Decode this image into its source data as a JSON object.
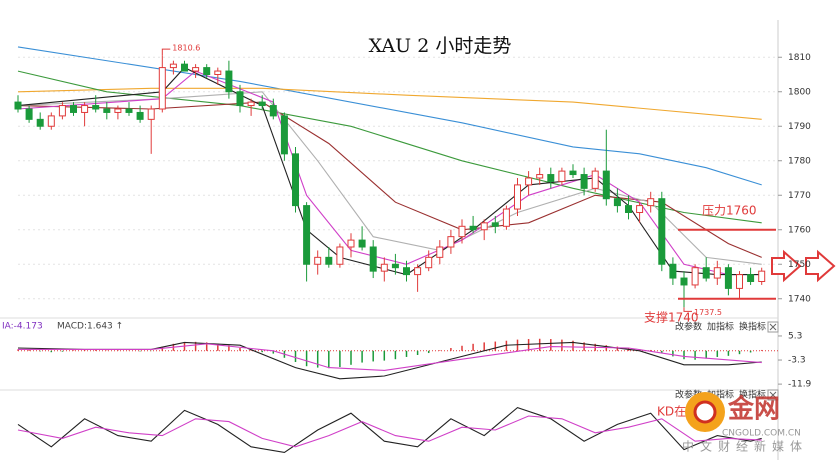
{
  "chart_data": [
    {
      "type": "candlestick",
      "title": "XAU 2 小时走势",
      "ylim": [
        1735,
        1815
      ],
      "yticks": [
        1740,
        1750,
        1760,
        1770,
        1780,
        1790,
        1800,
        1810
      ],
      "grid": true,
      "up_color": "#e03a3a",
      "down_color": "#1a9a3a",
      "candles": {
        "open": [
          1797,
          1795,
          1792,
          1790,
          1793,
          1796,
          1794,
          1796,
          1795,
          1794,
          1795,
          1794,
          1792,
          1795,
          1807,
          1808,
          1806,
          1807,
          1805,
          1806,
          1800,
          1796,
          1797,
          1796,
          1793,
          1782,
          1767,
          1750,
          1752,
          1750,
          1755,
          1757,
          1755,
          1748,
          1750,
          1749,
          1747,
          1749,
          1752,
          1755,
          1758,
          1761,
          1760,
          1762,
          1761,
          1766,
          1773,
          1775,
          1776,
          1774,
          1777,
          1776,
          1772,
          1777,
          1769,
          1767,
          1765,
          1767,
          1769,
          1750,
          1746,
          1744,
          1749,
          1746,
          1749,
          1743,
          1747,
          1745
        ],
        "high": [
          1799,
          1796,
          1794,
          1794,
          1797,
          1797,
          1797,
          1799,
          1797,
          1796,
          1797,
          1796,
          1796,
          1810.6,
          1809,
          1809,
          1808,
          1808,
          1807,
          1809,
          1802,
          1798,
          1799,
          1798,
          1794,
          1784,
          1768,
          1754,
          1755,
          1756,
          1759,
          1761,
          1757,
          1752,
          1753,
          1751,
          1750,
          1754,
          1757,
          1760,
          1763,
          1764,
          1763,
          1764,
          1767,
          1775,
          1777,
          1778,
          1778,
          1778,
          1779,
          1778,
          1778,
          1789,
          1772,
          1770,
          1768,
          1771,
          1771,
          1752,
          1748,
          1750,
          1752,
          1751,
          1750,
          1748,
          1749,
          1749
        ],
        "low": [
          1794,
          1791,
          1789,
          1789,
          1792,
          1793,
          1790,
          1794,
          1792,
          1792,
          1793,
          1791,
          1782,
          1794,
          1805,
          1806,
          1804,
          1804,
          1802,
          1798,
          1794,
          1793,
          1795,
          1792,
          1780,
          1765,
          1745,
          1747,
          1749,
          1749,
          1752,
          1754,
          1746,
          1745,
          1747,
          1745,
          1742,
          1748,
          1750,
          1753,
          1756,
          1759,
          1757,
          1759,
          1760,
          1764,
          1770,
          1773,
          1772,
          1773,
          1775,
          1770,
          1771,
          1767,
          1765,
          1763,
          1762,
          1765,
          1748,
          1744,
          1737.5,
          1743,
          1745,
          1744,
          1741,
          1740,
          1744,
          1744
        ],
        "close": [
          1795,
          1792,
          1790,
          1793,
          1796,
          1794,
          1796,
          1795,
          1794,
          1795,
          1794,
          1792,
          1795,
          1807,
          1808,
          1806,
          1807,
          1805,
          1806,
          1800,
          1796,
          1797,
          1796,
          1793,
          1782,
          1767,
          1750,
          1752,
          1750,
          1755,
          1757,
          1755,
          1748,
          1750,
          1749,
          1747,
          1749,
          1752,
          1755,
          1758,
          1761,
          1760,
          1762,
          1761,
          1766,
          1773,
          1775,
          1776,
          1774,
          1777,
          1776,
          1772,
          1777,
          1769,
          1767,
          1765,
          1767,
          1769,
          1750,
          1746,
          1744,
          1749,
          1746,
          1749,
          1743,
          1747,
          1745,
          1748
        ]
      },
      "lines": [
        {
          "color": "#3a8fd6",
          "x": [
            0,
            20,
            40,
            50,
            56,
            62,
            67
          ],
          "values": [
            1813,
            1803,
            1791,
            1784,
            1782,
            1778,
            1773
          ]
        },
        {
          "color": "#f0a830",
          "x": [
            0,
            12,
            22,
            35,
            50,
            67
          ],
          "values": [
            1800,
            1801,
            1801,
            1799,
            1797,
            1792
          ]
        },
        {
          "color": "#3c9a3c",
          "x": [
            0,
            8,
            20,
            30,
            40,
            50,
            60,
            67
          ],
          "values": [
            1806,
            1800,
            1796,
            1790,
            1780,
            1772,
            1765,
            1762
          ]
        },
        {
          "color": "#9a3030",
          "x": [
            0,
            12,
            22,
            28,
            34,
            40,
            46,
            52,
            58,
            64,
            67
          ],
          "values": [
            1796,
            1795,
            1797,
            1785,
            1768,
            1760,
            1762,
            1770,
            1768,
            1756,
            1752
          ]
        },
        {
          "color": "#b0b0b0",
          "x": [
            0,
            13,
            22,
            27,
            32,
            38,
            45,
            52,
            57,
            62,
            67
          ],
          "values": [
            1796,
            1798,
            1800,
            1780,
            1758,
            1754,
            1765,
            1772,
            1768,
            1752,
            1750
          ]
        },
        {
          "color": "#d040c8",
          "x": [
            0,
            13,
            16,
            23,
            26,
            30,
            35,
            40,
            46,
            52,
            56,
            60,
            64,
            67
          ],
          "values": [
            1795,
            1798,
            1806,
            1797,
            1770,
            1754,
            1750,
            1757,
            1770,
            1776,
            1768,
            1750,
            1747,
            1747
          ]
        },
        {
          "color": "#222222",
          "x": [
            0,
            13,
            15,
            22,
            26,
            29,
            35,
            41,
            46,
            52,
            55,
            59,
            63,
            67
          ],
          "values": [
            1796,
            1800,
            1807,
            1796,
            1760,
            1752,
            1747,
            1760,
            1773,
            1775,
            1767,
            1748,
            1747,
            1747
          ]
        }
      ],
      "levels": [
        {
          "label": "压力1760",
          "value": 1760,
          "color": "#e03a3a"
        },
        {
          "label": "支撑1740",
          "value": 1740,
          "color": "#e03a3a"
        }
      ]
    },
    {
      "type": "macd",
      "labels": [
        "IA:-4.173",
        "MACD:1.643 ↑"
      ],
      "buttons": [
        "改参数",
        "加指标",
        "换指标"
      ],
      "ylim": [
        -14,
        11
      ],
      "yticks": [
        5.3,
        -3.3,
        -11.9
      ],
      "up_color": "#e03a3a",
      "down_color": "#1a9a3a",
      "histogram": [
        0.5,
        0.3,
        -0.2,
        -0.5,
        -0.3,
        0.2,
        0.4,
        0.3,
        0.1,
        0.2,
        0.1,
        -0.2,
        -0.1,
        1.5,
        2.5,
        3,
        3.2,
        3,
        2.6,
        2,
        1,
        0.2,
        -0.5,
        -1,
        -2.5,
        -4,
        -5.5,
        -6,
        -6.2,
        -5.8,
        -5,
        -4.2,
        -3.8,
        -3.5,
        -3,
        -2.2,
        -1.5,
        -0.8,
        0.2,
        1,
        1.8,
        2.5,
        3,
        3.3,
        3.6,
        4,
        4.2,
        4.3,
        4.2,
        4,
        3.6,
        3,
        2.5,
        2,
        1.5,
        1,
        0.6,
        0.3,
        -0.8,
        -2,
        -3,
        -3.2,
        -2.8,
        -2.2,
        -1.8,
        -1.2,
        -0.6,
        0.3
      ],
      "series": [
        {
          "color": "#222222",
          "x": [
            0,
            6,
            12,
            15,
            20,
            25,
            29,
            33,
            38,
            44,
            50,
            56,
            60,
            64,
            67
          ],
          "values": [
            1,
            0.5,
            0.5,
            3,
            2,
            -6,
            -10,
            -9,
            -4,
            2,
            3,
            0,
            -5,
            -5,
            -4
          ]
        },
        {
          "color": "#d040c8",
          "x": [
            0,
            12,
            17,
            23,
            28,
            33,
            40,
            48,
            55,
            60,
            67
          ],
          "values": [
            0.5,
            0.5,
            2.5,
            0,
            -6,
            -7,
            -3,
            1.5,
            1,
            -2,
            -4.2
          ]
        }
      ]
    },
    {
      "type": "kd",
      "buttons": [
        "改参数",
        "加指标",
        "换指标"
      ],
      "annotation": "KD在",
      "ylim": [
        0,
        100
      ],
      "series": [
        {
          "color": "#222222",
          "x": [
            0,
            3,
            6,
            9,
            12,
            15,
            18,
            21,
            24,
            27,
            30,
            33,
            36,
            39,
            42,
            45,
            48,
            51,
            54,
            57,
            60,
            63,
            66,
            67
          ],
          "values": [
            60,
            20,
            70,
            40,
            30,
            85,
            60,
            20,
            10,
            50,
            80,
            30,
            20,
            70,
            40,
            90,
            70,
            30,
            60,
            80,
            15,
            40,
            30,
            35
          ]
        },
        {
          "color": "#d040c8",
          "x": [
            0,
            4,
            7,
            10,
            13,
            16,
            19,
            22,
            25,
            28,
            31,
            34,
            37,
            40,
            43,
            46,
            49,
            52,
            55,
            58,
            61,
            64,
            67
          ],
          "values": [
            50,
            35,
            55,
            45,
            40,
            70,
            65,
            35,
            20,
            40,
            65,
            40,
            30,
            55,
            50,
            75,
            70,
            45,
            55,
            70,
            30,
            35,
            32
          ]
        }
      ]
    }
  ],
  "watermark": {
    "logo": "金网",
    "site": "CNGOLD.COM.CN",
    "slogan": "中文财经新媒体"
  }
}
